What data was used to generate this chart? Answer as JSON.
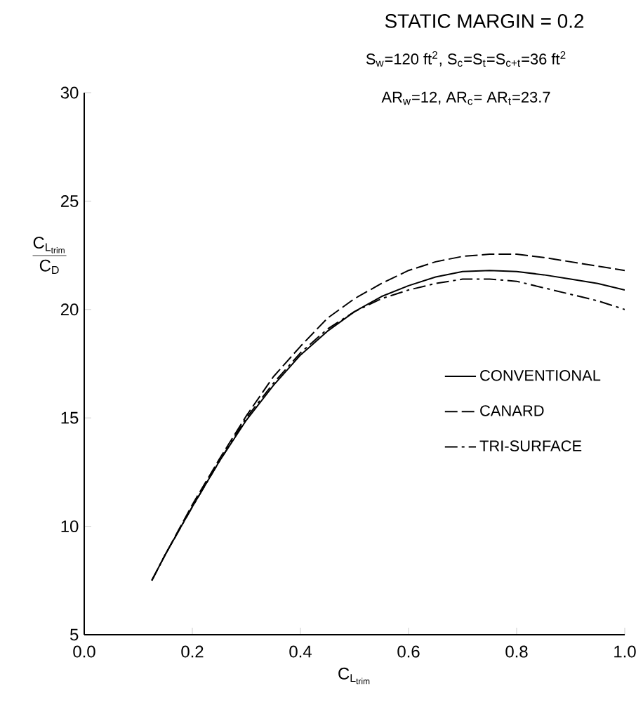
{
  "chart_data": {
    "type": "line",
    "title": "STATIC MARGIN = 0.2",
    "subtitle": "S$_{w}$=120 ft$^{2}$,  S$_{c}$=S$_{t}$=S$_{c+t}$=36 ft$^{2}$",
    "annotations": [
      "AR$_{w}$=12,  AR$_{c}$= AR$_{t}$=23.7"
    ],
    "xlabel": "\\mathrm{C}_{\\mathrm{L}_{\\mathrm{trim}}}",
    "ylabel": "\\frac{\\mathrm{C}_{\\mathrm{L}_{\\mathrm{trim}}}}{\\mathrm{C}_{\\mathrm{D}}}",
    "xlim": [
      0,
      1.0
    ],
    "ylim": [
      5,
      30
    ],
    "xticks": [
      {
        "value": 0,
        "label": "0.0"
      },
      {
        "value": 0.2,
        "label": "0.2"
      },
      {
        "value": 0.4,
        "label": "0.4"
      },
      {
        "value": 0.6,
        "label": "0.6"
      },
      {
        "value": 0.8,
        "label": "0.8"
      },
      {
        "value": 1.0,
        "label": "1.0"
      }
    ],
    "yticks": [
      5,
      10,
      15,
      20,
      25,
      30
    ],
    "x": [
      0.125,
      0.15,
      0.2,
      0.25,
      0.3,
      0.35,
      0.4,
      0.45,
      0.5,
      0.55,
      0.6,
      0.65,
      0.7,
      0.75,
      0.8,
      0.85,
      0.9,
      0.95,
      1.0
    ],
    "legend": "right",
    "series": [
      {
        "name": "CONVENTIONAL",
        "color": "#000000",
        "line_style": "solid",
        "values": [
          7.5,
          8.7,
          10.9,
          13.0,
          14.9,
          16.5,
          17.9,
          19.0,
          19.9,
          20.6,
          21.1,
          21.5,
          21.75,
          21.8,
          21.75,
          21.6,
          21.4,
          21.2,
          20.9
        ]
      },
      {
        "name": "CANARD",
        "color": "#000000",
        "line_style": "dashed",
        "values": [
          7.5,
          8.7,
          11.0,
          13.1,
          15.1,
          16.9,
          18.3,
          19.6,
          20.5,
          21.2,
          21.8,
          22.2,
          22.45,
          22.55,
          22.55,
          22.4,
          22.2,
          22.0,
          21.8
        ]
      },
      {
        "name": "TRI-SURFACE",
        "color": "#000000",
        "line_style": "dashdot",
        "values": [
          7.5,
          8.7,
          10.9,
          13.0,
          15.0,
          16.6,
          18.0,
          19.1,
          19.9,
          20.5,
          20.9,
          21.2,
          21.4,
          21.4,
          21.3,
          21.0,
          20.7,
          20.4,
          20.0
        ]
      }
    ]
  }
}
